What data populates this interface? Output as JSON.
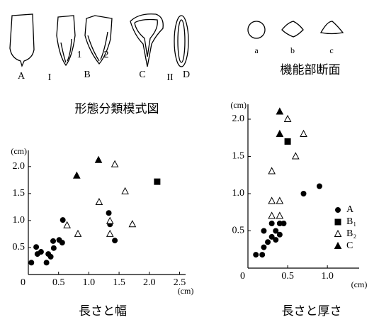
{
  "figure": {
    "title": "形態分類模式図",
    "sections_title": "機能部断面",
    "labels": [
      "A",
      "I",
      "B",
      "1",
      "2",
      "C",
      "II",
      "D"
    ],
    "section_labels": [
      "a",
      "b",
      "c"
    ]
  },
  "chart_data": [
    {
      "type": "scatter",
      "title": "長さと幅",
      "x_label": "(cm)",
      "y_label": "(cm)",
      "xlim": [
        0,
        2.6
      ],
      "ylim": [
        0,
        2.3
      ],
      "xticks": [
        0,
        0.5,
        {
          "value": 1,
          "label": "1.0"
        },
        1.5,
        {
          "value": 2,
          "label": "2.0"
        },
        2.5
      ],
      "yticks": [
        0.5,
        {
          "value": 1,
          "label": "1.0"
        },
        1.5,
        {
          "value": 2,
          "label": "2.0"
        }
      ],
      "legend": false,
      "series": [
        {
          "name": "A",
          "marker": "circle",
          "filled": true,
          "color": "#000",
          "x": [
            0.05,
            0.13,
            0.15,
            0.21,
            0.3,
            0.33,
            0.37,
            0.42,
            0.41,
            0.51,
            0.56,
            0.57,
            1.33,
            1.35,
            1.43
          ],
          "values": [
            0.22,
            0.51,
            0.38,
            0.42,
            0.22,
            0.38,
            0.33,
            0.49,
            0.62,
            0.64,
            0.59,
            1.01,
            1.14,
            0.93,
            0.63
          ]
        },
        {
          "name": "B₁",
          "marker": "square",
          "filled": true,
          "color": "#000",
          "x": [
            2.13
          ],
          "values": [
            1.72
          ]
        },
        {
          "name": "B₂",
          "marker": "triangle",
          "filled": false,
          "color": "#000",
          "x": [
            0.64,
            0.82,
            1.17,
            1.43,
            1.6,
            1.35,
            1.35,
            1.72
          ],
          "values": [
            0.91,
            0.75,
            1.34,
            2.04,
            1.54,
            0.99,
            0.75,
            0.93
          ]
        },
        {
          "name": "C",
          "marker": "triangle",
          "filled": true,
          "color": "#000",
          "x": [
            0.8,
            1.16
          ],
          "values": [
            1.83,
            2.12
          ]
        }
      ]
    },
    {
      "type": "scatter",
      "title": "長さと厚さ",
      "x_label": "(cm)",
      "y_label": "(cm)",
      "xlim": [
        0,
        1.4
      ],
      "ylim": [
        0,
        2.2
      ],
      "xticks": [
        0,
        0.5,
        {
          "value": 1,
          "label": "1.0"
        }
      ],
      "yticks": [
        0.5,
        {
          "value": 1,
          "label": "1.0"
        },
        1.5,
        {
          "value": 2,
          "label": "2.0"
        }
      ],
      "legend": "lower right",
      "series": [
        {
          "name": "A",
          "marker": "circle",
          "filled": true,
          "color": "#000",
          "x": [
            0.1,
            0.18,
            0.2,
            0.2,
            0.25,
            0.3,
            0.3,
            0.35,
            0.35,
            0.4,
            0.4,
            0.45,
            0.7,
            0.9
          ],
          "values": [
            0.18,
            0.18,
            0.28,
            0.5,
            0.35,
            0.42,
            0.6,
            0.38,
            0.5,
            0.45,
            0.6,
            0.6,
            1.0,
            1.1
          ]
        },
        {
          "name": "B₁",
          "marker": "square",
          "filled": true,
          "color": "#000",
          "x": [
            0.5
          ],
          "values": [
            1.7
          ]
        },
        {
          "name": "B₂",
          "marker": "triangle",
          "filled": false,
          "color": "#000",
          "x": [
            0.3,
            0.3,
            0.3,
            0.4,
            0.4,
            0.5,
            0.6,
            0.7
          ],
          "values": [
            0.7,
            0.9,
            1.3,
            0.9,
            0.7,
            2.0,
            1.5,
            1.8
          ]
        },
        {
          "name": "C",
          "marker": "triangle",
          "filled": true,
          "color": "#000",
          "x": [
            0.4,
            0.4
          ],
          "values": [
            2.1,
            1.8
          ]
        }
      ]
    }
  ]
}
